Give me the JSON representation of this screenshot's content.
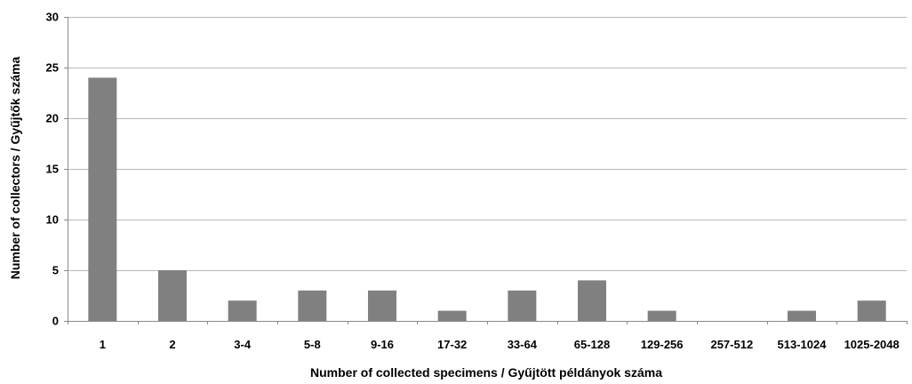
{
  "chart_data": {
    "type": "bar",
    "title": "",
    "xlabel": "Number of collected specimens / Gyűjtött példányok száma",
    "ylabel": "Number of collectors / Gyűjtők száma",
    "categories": [
      "1",
      "2",
      "3-4",
      "5-8",
      "9-16",
      "17-32",
      "33-64",
      "65-128",
      "129-256",
      "257-512",
      "513-1024",
      "1025-2048"
    ],
    "values": [
      24,
      5,
      2,
      3,
      3,
      1,
      3,
      4,
      1,
      0,
      1,
      2
    ],
    "ylim": [
      0,
      30
    ],
    "yticks": [
      "0",
      "5",
      "10",
      "15",
      "20",
      "25",
      "30"
    ],
    "grid": true,
    "legend": "none",
    "colors": {
      "bar": "#808080",
      "grid": "#b8b8b8",
      "axis": "#8a8a8a"
    }
  }
}
